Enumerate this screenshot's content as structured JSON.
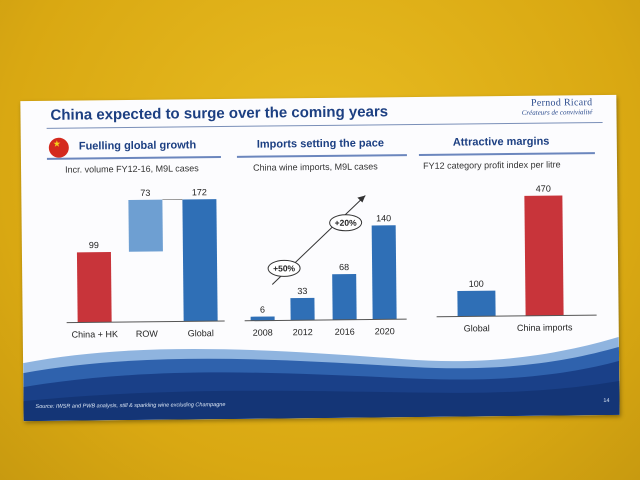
{
  "slide": {
    "title": "China expected to surge over the coming years",
    "brand_name": "Pernod Ricard",
    "brand_tagline": "Créateurs de convivialité",
    "source": "Source: IWSR and PWB analysis, still & sparkling wine excluding Champagne",
    "page_number": "14"
  },
  "colors": {
    "red": "#c8343a",
    "blue": "#2f6fb6",
    "light_blue": "#6e9fd2",
    "title_blue": "#1c3f82"
  },
  "panels": [
    {
      "title": "Fuelling global growth",
      "subtitle": "Incr. volume FY12-16, M9L cases",
      "has_flag": true
    },
    {
      "title": "Imports setting the pace",
      "subtitle": "China wine imports, M9L cases"
    },
    {
      "title": "Attractive margins",
      "subtitle": "FY12 category profit index per litre"
    }
  ],
  "chart_data": [
    {
      "type": "bar",
      "subtype": "waterfall",
      "categories": [
        "China + HK",
        "ROW",
        "Global"
      ],
      "values": [
        99,
        73,
        172
      ],
      "colors": [
        "#c8343a",
        "#6e9fd2",
        "#2f6fb6"
      ],
      "ylim": [
        0,
        172
      ]
    },
    {
      "type": "bar",
      "categories": [
        "2008",
        "2012",
        "2016",
        "2020"
      ],
      "values": [
        6,
        33,
        68,
        140
      ],
      "colors": [
        "#2f6fb6",
        "#2f6fb6",
        "#2f6fb6",
        "#2f6fb6"
      ],
      "annotations": [
        "+50%",
        "+20%"
      ],
      "ylim": [
        0,
        140
      ]
    },
    {
      "type": "bar",
      "categories": [
        "Global",
        "China imports"
      ],
      "values": [
        100,
        470
      ],
      "colors": [
        "#2f6fb6",
        "#c8343a"
      ],
      "ylim": [
        0,
        470
      ]
    }
  ]
}
